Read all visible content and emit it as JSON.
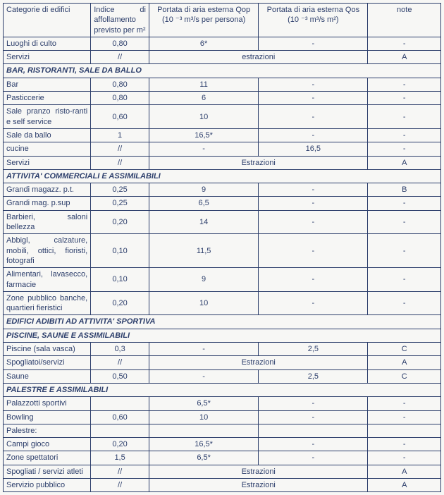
{
  "headers": {
    "cat": "Categorie di edifici",
    "idx": "Indice di affollamento previsto per m²",
    "qop": "Portata di aria esterna Qop",
    "qop_unit": "(10 ⁻³ m³/s per persona)",
    "qos": "Portata di aria esterna Qos",
    "qos_unit": "(10 ⁻³ m³/s m²)",
    "note": "note"
  },
  "rows": [
    {
      "type": "data",
      "cat": "Luoghi di culto",
      "idx": "0,80",
      "qop": "6*",
      "qos": "-",
      "note": "-"
    },
    {
      "type": "data",
      "cat": "Servizi",
      "idx": "//",
      "span": "estrazioni",
      "note": "A"
    },
    {
      "type": "section",
      "label": "BAR, RISTORANTI, SALE DA BALLO"
    },
    {
      "type": "data",
      "cat": "Bar",
      "idx": "0,80",
      "qop": "11",
      "qos": "-",
      "note": "-"
    },
    {
      "type": "data",
      "cat": "Pasticcerie",
      "idx": "0,80",
      "qop": "6",
      "qos": "-",
      "note": "-"
    },
    {
      "type": "data",
      "cat": "Sale pranzo risto-ranti e self service",
      "idx": "0,60",
      "qop": "10",
      "qos": "-",
      "note": "-"
    },
    {
      "type": "data",
      "cat": "Sale da ballo",
      "idx": "1",
      "qop": "16,5*",
      "qos": "-",
      "note": "-"
    },
    {
      "type": "data",
      "cat": "cucine",
      "idx": "//",
      "qop": "-",
      "qos": "16,5",
      "note": "-"
    },
    {
      "type": "data",
      "cat": "Servizi",
      "idx": "//",
      "span": "Estrazioni",
      "note": "A"
    },
    {
      "type": "section",
      "label": "ATTIVITA' COMMERCIALI E ASSIMILABILI"
    },
    {
      "type": "data",
      "cat": "Grandi magazz. p.t.",
      "idx": "0,25",
      "qop": "9",
      "qos": "-",
      "note": "B"
    },
    {
      "type": "data",
      "cat": "Grandi mag. p.sup",
      "idx": "0,25",
      "qop": "6,5",
      "qos": "-",
      "note": "-"
    },
    {
      "type": "data",
      "cat": "Barbieri, saloni bellezza",
      "idx": "0,20",
      "qop": "14",
      "qos": "-",
      "note": "-"
    },
    {
      "type": "data",
      "cat": "Abbigl, calzature, mobili, ottici, fioristi, fotografi",
      "idx": "0,10",
      "qop": "11,5",
      "qos": "-",
      "note": "-"
    },
    {
      "type": "data",
      "cat": "Alimentari, lavasecco, farmacie",
      "idx": "0,10",
      "qop": "9",
      "qos": "-",
      "note": "-"
    },
    {
      "type": "data",
      "cat": "Zone pubblico banche, quartieri fieristici",
      "idx": "0,20",
      "qop": "10",
      "qos": "-",
      "note": "-"
    },
    {
      "type": "section",
      "label": "EDIFICI ADIBITI AD ATTIVITA' SPORTIVA"
    },
    {
      "type": "section",
      "label": "PISCINE, SAUNE E ASSIMILABILI"
    },
    {
      "type": "data",
      "cat": "Piscine (sala vasca)",
      "idx": "0,3",
      "qop": "-",
      "qos": "2,5",
      "note": "C"
    },
    {
      "type": "data",
      "cat": "Spogliatoi/servizi",
      "idx": "//",
      "span": "Estrazioni",
      "note": "A"
    },
    {
      "type": "data",
      "cat": "Saune",
      "idx": "0,50",
      "qop": "-",
      "qos": "2,5",
      "note": "C"
    },
    {
      "type": "section",
      "label": "PALESTRE E ASSIMILABILI"
    },
    {
      "type": "data",
      "cat": "Palazzotti sportivi",
      "idx": "",
      "qop": "6,5*",
      "qos": "-",
      "note": "-"
    },
    {
      "type": "data",
      "cat": "Bowling",
      "idx": "0,60",
      "qop": "10",
      "qos": "-",
      "note": "-"
    },
    {
      "type": "data",
      "cat": "Palestre:",
      "idx": "",
      "qop": "",
      "qos": "",
      "note": ""
    },
    {
      "type": "data",
      "cat": "Campi gioco",
      "idx": "0,20",
      "qop": "16,5*",
      "qos": "-",
      "note": "-"
    },
    {
      "type": "data",
      "cat": "Zone spettatori",
      "idx": "1,5",
      "qop": "6,5*",
      "qos": "-",
      "note": "-"
    },
    {
      "type": "data",
      "cat": "Spogliati / servizi atleti",
      "idx": "//",
      "span": "Estrazioni",
      "note": "A"
    },
    {
      "type": "data",
      "cat": "Servizio pubblico",
      "idx": "//",
      "span": "Estrazioni",
      "note": "A"
    }
  ]
}
